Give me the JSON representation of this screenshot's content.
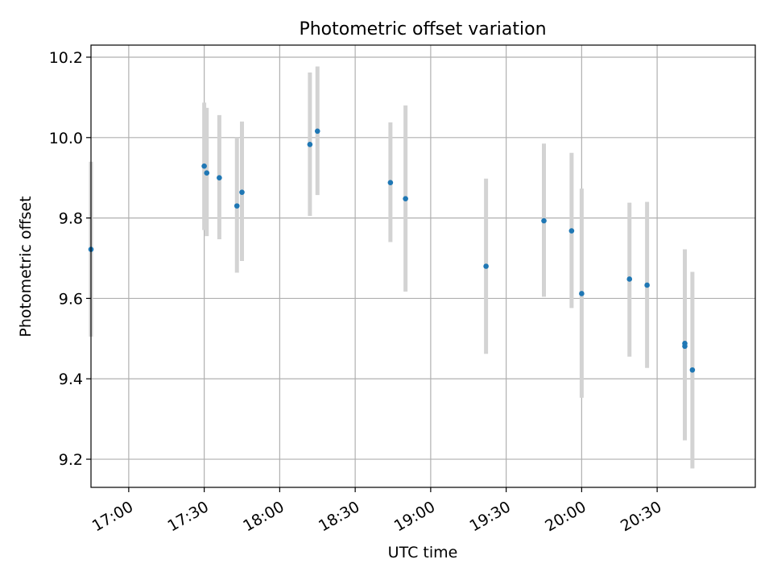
{
  "chart_data": {
    "type": "scatter",
    "title": "Photometric offset variation",
    "xlabel": "UTC time",
    "ylabel": "Photometric offset",
    "x_tick_labels": [
      "17:00",
      "17:30",
      "18:00",
      "18:30",
      "19:00",
      "19:30",
      "20:00",
      "20:30"
    ],
    "y_tick_labels": [
      "9.2",
      "9.4",
      "9.6",
      "9.8",
      "10.0",
      "10.2"
    ],
    "xlim": [
      "16:45",
      "21:09"
    ],
    "ylim": [
      9.13,
      10.23
    ],
    "grid": true,
    "colors": {
      "marker": "#1f77b4",
      "errorbar": "#d3d3d3",
      "grid": "#b0b0b0"
    },
    "points": [
      {
        "x": "16:45",
        "y": 9.722,
        "ylow": 9.505,
        "yhigh": 9.94
      },
      {
        "x": "17:30",
        "y": 9.929,
        "ylow": 9.77,
        "yhigh": 10.087
      },
      {
        "x": "17:31",
        "y": 9.912,
        "ylow": 9.755,
        "yhigh": 10.074
      },
      {
        "x": "17:36",
        "y": 9.9,
        "ylow": 9.747,
        "yhigh": 10.056
      },
      {
        "x": "17:43",
        "y": 9.83,
        "ylow": 9.664,
        "yhigh": 10.0
      },
      {
        "x": "17:45",
        "y": 9.864,
        "ylow": 9.693,
        "yhigh": 10.04
      },
      {
        "x": "18:12",
        "y": 9.983,
        "ylow": 9.805,
        "yhigh": 10.162
      },
      {
        "x": "18:15",
        "y": 10.016,
        "ylow": 9.857,
        "yhigh": 10.177
      },
      {
        "x": "18:44",
        "y": 9.888,
        "ylow": 9.74,
        "yhigh": 10.038
      },
      {
        "x": "18:50",
        "y": 9.848,
        "ylow": 9.617,
        "yhigh": 10.08
      },
      {
        "x": "19:22",
        "y": 9.68,
        "ylow": 9.462,
        "yhigh": 9.898
      },
      {
        "x": "19:45",
        "y": 9.793,
        "ylow": 9.604,
        "yhigh": 9.985
      },
      {
        "x": "19:56",
        "y": 9.768,
        "ylow": 9.576,
        "yhigh": 9.962
      },
      {
        "x": "20:00",
        "y": 9.612,
        "ylow": 9.353,
        "yhigh": 9.873
      },
      {
        "x": "20:19",
        "y": 9.648,
        "ylow": 9.455,
        "yhigh": 9.838
      },
      {
        "x": "20:26",
        "y": 9.633,
        "ylow": 9.427,
        "yhigh": 9.84
      },
      {
        "x": "20:41",
        "y": 9.488,
        "ylow": 9.255,
        "yhigh": 9.722
      },
      {
        "x": "20:41",
        "y": 9.481,
        "ylow": 9.247,
        "yhigh": 9.717
      },
      {
        "x": "20:44",
        "y": 9.422,
        "ylow": 9.177,
        "yhigh": 9.666
      }
    ]
  }
}
